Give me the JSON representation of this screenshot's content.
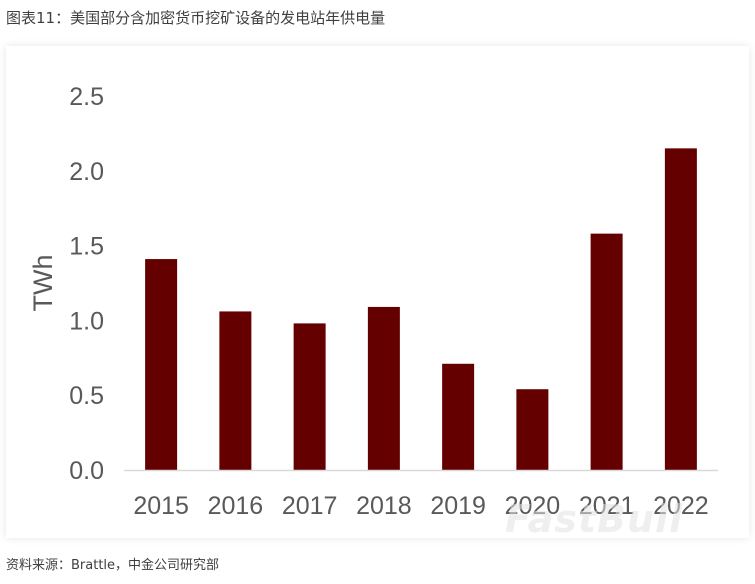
{
  "figure": {
    "title": "图表11：美国部分含加密货币挖矿设备的发电站年供电量",
    "source": "资料来源：Brattle，中金公司研究部",
    "watermark": "FastBull"
  },
  "colors": {
    "bar": "#640000",
    "axis_line": "#d9d9d9",
    "tick_text": "#595959"
  },
  "chart_data": {
    "type": "bar",
    "title": "",
    "xlabel": "",
    "ylabel": "TWh",
    "categories": [
      "2015",
      "2016",
      "2017",
      "2018",
      "2019",
      "2020",
      "2021",
      "2022"
    ],
    "values": [
      1.41,
      1.06,
      0.98,
      1.09,
      0.71,
      0.54,
      1.58,
      2.15
    ],
    "ylim": [
      0,
      2.5
    ],
    "yticks": [
      0.0,
      0.5,
      1.0,
      1.5,
      2.0,
      2.5
    ],
    "ytick_labels": [
      "0.0",
      "0.5",
      "1.0",
      "1.5",
      "2.0",
      "2.5"
    ],
    "grid": false,
    "legend": "none"
  }
}
